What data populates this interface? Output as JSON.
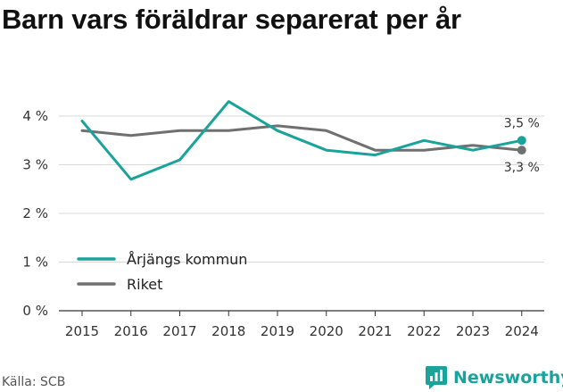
{
  "title": "Barn vars föräldrar separerat per år",
  "source": "Källa: SCB",
  "brand": {
    "name": "Newsworthy",
    "icon": "newsworthy-logo-icon",
    "color": "#19a39a"
  },
  "colors": {
    "primary": "#19a39a",
    "secondary": "#707070",
    "grid": "#d9d9d9",
    "axis": "#333333"
  },
  "chart_data": {
    "type": "line",
    "title": "Barn vars föräldrar separerat per år",
    "x": [
      "2015",
      "2016",
      "2017",
      "2018",
      "2019",
      "2020",
      "2021",
      "2022",
      "2023",
      "2024"
    ],
    "ylim": [
      0,
      4.4
    ],
    "yticks": [
      0,
      1,
      2,
      3,
      4
    ],
    "ytick_labels": [
      "0 %",
      "1 %",
      "2 %",
      "3 %",
      "4 %"
    ],
    "grid": true,
    "legend_position": "bottom-left",
    "series": [
      {
        "name": "Årjängs kommun",
        "color": "#19a39a",
        "values": [
          3.9,
          2.7,
          3.1,
          4.3,
          3.7,
          3.3,
          3.2,
          3.5,
          3.3,
          3.5
        ],
        "end_label": "3,5 %"
      },
      {
        "name": "Riket",
        "color": "#707070",
        "values": [
          3.7,
          3.6,
          3.7,
          3.7,
          3.8,
          3.7,
          3.3,
          3.3,
          3.4,
          3.3
        ],
        "end_label": "3,3 %"
      }
    ]
  }
}
